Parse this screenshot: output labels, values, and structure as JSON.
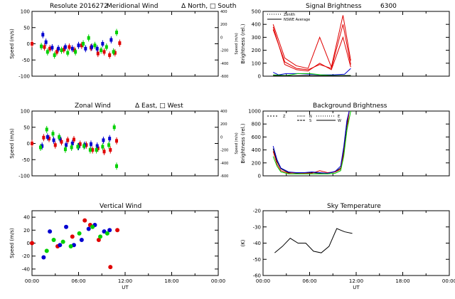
{
  "page_title": "Resolute 2016272",
  "colors": {
    "red": "#e00000",
    "blue": "#0000d0",
    "green": "#00d000",
    "black": "#000000"
  },
  "chart_data": [
    {
      "id": "meridional",
      "type": "scatter",
      "title": "Meridional Wind",
      "legend_text": "Δ North,  □ South",
      "xlabel": "",
      "ylabel": "Speed (m/s)",
      "ylabel_right": "Speed (m/s)",
      "xlim": [
        0,
        24
      ],
      "ylim": [
        -100,
        100
      ],
      "yticks": [
        -100,
        -50,
        0,
        50,
        100
      ],
      "yticks_right": [
        "-600",
        "-400",
        "-200",
        "0",
        "200",
        "400"
      ],
      "xticks": [],
      "series": [
        {
          "name": "red",
          "color": "#e00000",
          "points": [
            [
              0.0,
              0
            ],
            [
              1.6,
              -10
            ],
            [
              2.3,
              -15
            ],
            [
              3.2,
              -25
            ],
            [
              4.1,
              -18
            ],
            [
              4.8,
              -10
            ],
            [
              5.5,
              -20
            ],
            [
              6.4,
              -5
            ],
            [
              7.6,
              -12
            ],
            [
              8.5,
              -30
            ],
            [
              9.3,
              -25
            ],
            [
              10.0,
              -35
            ],
            [
              10.7,
              -28
            ],
            [
              11.3,
              2
            ]
          ]
        },
        {
          "name": "blue",
          "color": "#0000d0",
          "points": [
            [
              1.4,
              28
            ],
            [
              1.8,
              5
            ],
            [
              2.6,
              -12
            ],
            [
              3.4,
              -15
            ],
            [
              4.3,
              -10
            ],
            [
              5.2,
              -15
            ],
            [
              6.0,
              -5
            ],
            [
              6.9,
              -15
            ],
            [
              7.7,
              -10
            ],
            [
              8.4,
              -15
            ],
            [
              9.1,
              0
            ],
            [
              10.2,
              12
            ]
          ]
        },
        {
          "name": "green",
          "color": "#00d000",
          "points": [
            [
              1.2,
              -8
            ],
            [
              2.0,
              -25
            ],
            [
              2.9,
              -35
            ],
            [
              3.8,
              -20
            ],
            [
              4.6,
              -28
            ],
            [
              5.6,
              -25
            ],
            [
              6.6,
              0
            ],
            [
              7.3,
              18
            ],
            [
              8.1,
              -5
            ],
            [
              8.9,
              -20
            ],
            [
              9.6,
              -10
            ],
            [
              10.5,
              -25
            ],
            [
              10.9,
              35
            ]
          ]
        }
      ]
    },
    {
      "id": "signal",
      "type": "line",
      "title": "Signal Brightness",
      "subtitle": "6300",
      "legend": [
        "Zenith",
        "NSWE Average"
      ],
      "xlabel": "",
      "ylabel": "Brightness (rel.)",
      "xlim": [
        0,
        24
      ],
      "ylim": [
        0,
        500
      ],
      "yticks": [
        0,
        100,
        200,
        300,
        400,
        500
      ],
      "xticks": [],
      "series": [
        {
          "name": "red1",
          "color": "#e00000",
          "x": [
            1.3,
            2.8,
            4.3,
            5.8,
            7.3,
            8.8,
            10.3,
            11.3
          ],
          "values": [
            400,
            140,
            80,
            60,
            300,
            70,
            470,
            120
          ]
        },
        {
          "name": "red2",
          "color": "#e00000",
          "x": [
            1.3,
            2.8,
            4.3,
            5.8,
            7.3,
            8.8,
            10.3,
            11.3
          ],
          "values": [
            360,
            110,
            60,
            50,
            90,
            60,
            400,
            90
          ]
        },
        {
          "name": "red3",
          "color": "#e00000",
          "x": [
            1.3,
            2.8,
            4.3,
            5.8,
            7.3,
            8.8,
            10.3,
            11.3
          ],
          "values": [
            380,
            90,
            50,
            40,
            100,
            50,
            300,
            70
          ]
        },
        {
          "name": "blue",
          "color": "#0000d0",
          "x": [
            1.3,
            2.0,
            3.0,
            4.5,
            6.0,
            7.5,
            9.0,
            10.5,
            11.3
          ],
          "values": [
            30,
            10,
            20,
            20,
            15,
            10,
            10,
            15,
            60
          ]
        },
        {
          "name": "green",
          "color": "#00d000",
          "x": [
            1.3,
            3.0,
            4.5,
            6.0,
            7.5,
            9.0,
            10.5,
            11.3
          ],
          "values": [
            10,
            5,
            20,
            20,
            10,
            5,
            5,
            5
          ]
        },
        {
          "name": "black",
          "color": "#000000",
          "x": [
            1.3,
            3.0,
            5.0,
            7.0,
            9.0,
            11.3
          ],
          "values": [
            5,
            3,
            4,
            4,
            3,
            5
          ]
        }
      ]
    },
    {
      "id": "zonal",
      "type": "scatter",
      "title": "Zonal Wind",
      "legend_text": "Δ East,  □ West",
      "xlabel": "",
      "ylabel": "Speed (m/s)",
      "ylabel_right": "Speed (m/s)",
      "xlim": [
        0,
        24
      ],
      "ylim": [
        -100,
        100
      ],
      "yticks": [
        -100,
        -50,
        0,
        50,
        100
      ],
      "yticks_right": [
        "-600",
        "-400",
        "-200",
        "0",
        "200",
        "400"
      ],
      "xticks": [],
      "series": [
        {
          "name": "red",
          "color": "#e00000",
          "points": [
            [
              0.0,
              0
            ],
            [
              1.5,
              18
            ],
            [
              2.2,
              15
            ],
            [
              3.0,
              -5
            ],
            [
              3.8,
              5
            ],
            [
              4.6,
              10
            ],
            [
              5.4,
              12
            ],
            [
              6.2,
              -2
            ],
            [
              7.0,
              -5
            ],
            [
              7.8,
              -20
            ],
            [
              8.5,
              -15
            ],
            [
              9.3,
              -25
            ],
            [
              10.1,
              -20
            ],
            [
              10.9,
              8
            ]
          ]
        },
        {
          "name": "blue",
          "color": "#0000d0",
          "points": [
            [
              1.3,
              -8
            ],
            [
              2.0,
              20
            ],
            [
              2.8,
              10
            ],
            [
              3.6,
              15
            ],
            [
              4.4,
              -5
            ],
            [
              5.2,
              0
            ],
            [
              6.0,
              -10
            ],
            [
              6.8,
              -5
            ],
            [
              7.6,
              -2
            ],
            [
              8.4,
              -8
            ],
            [
              9.2,
              10
            ],
            [
              10.0,
              15
            ]
          ]
        },
        {
          "name": "green",
          "color": "#00d000",
          "points": [
            [
              1.1,
              -12
            ],
            [
              1.9,
              43
            ],
            [
              2.7,
              30
            ],
            [
              3.5,
              20
            ],
            [
              4.3,
              -18
            ],
            [
              5.1,
              -12
            ],
            [
              5.9,
              -10
            ],
            [
              6.7,
              -8
            ],
            [
              7.5,
              -20
            ],
            [
              8.3,
              -20
            ],
            [
              9.1,
              -10
            ],
            [
              9.9,
              -5
            ],
            [
              10.6,
              50
            ],
            [
              10.9,
              -70
            ]
          ]
        }
      ]
    },
    {
      "id": "background",
      "type": "line",
      "title": "Background Brightness",
      "legend": [
        "Z",
        "N",
        "E",
        "S",
        "W"
      ],
      "xlabel": "",
      "ylabel": "Brightness (rel.)",
      "xlim": [
        0,
        24
      ],
      "ylim": [
        0,
        1000
      ],
      "yticks": [
        0,
        200,
        400,
        600,
        800,
        1000
      ],
      "xticks": [],
      "series": [
        {
          "name": "black",
          "color": "#000000",
          "x": [
            1.3,
            1.8,
            2.3,
            3.3,
            4.3,
            5.3,
            6.3,
            7.3,
            8.3,
            9.3,
            10.0,
            10.4,
            10.8,
            11.1
          ],
          "values": [
            420,
            220,
            110,
            50,
            40,
            40,
            50,
            40,
            40,
            60,
            120,
            400,
            800,
            1000
          ]
        },
        {
          "name": "red",
          "color": "#e00000",
          "x": [
            1.3,
            1.8,
            2.3,
            3.3,
            4.3,
            5.3,
            6.3,
            7.3,
            8.3,
            9.3,
            10.0,
            10.4,
            10.8,
            11.1
          ],
          "values": [
            380,
            180,
            80,
            40,
            50,
            40,
            40,
            80,
            50,
            60,
            100,
            350,
            700,
            1000
          ]
        },
        {
          "name": "blue",
          "color": "#0000d0",
          "x": [
            1.3,
            1.8,
            2.3,
            3.3,
            4.3,
            5.3,
            6.3,
            7.3,
            8.3,
            9.3,
            10.0,
            10.4,
            10.8,
            11.1
          ],
          "values": [
            460,
            250,
            120,
            60,
            50,
            50,
            60,
            50,
            40,
            70,
            150,
            450,
            850,
            1000
          ]
        },
        {
          "name": "green",
          "color": "#00d000",
          "x": [
            1.3,
            1.8,
            2.3,
            3.3,
            4.3,
            5.3,
            6.3,
            7.3,
            8.3,
            9.3,
            10.0,
            10.4,
            10.8,
            11.3
          ],
          "values": [
            300,
            150,
            60,
            30,
            30,
            30,
            30,
            30,
            30,
            40,
            80,
            300,
            700,
            1000
          ]
        }
      ]
    },
    {
      "id": "vertical",
      "type": "scatter",
      "title": "Vertical Wind",
      "xlabel": "UT",
      "ylabel": "Speed (m/s)",
      "xlim": [
        0,
        24
      ],
      "ylim": [
        -50,
        50
      ],
      "yticks": [
        -40,
        -20,
        0,
        20,
        40
      ],
      "xticks": [
        "00:00",
        "06:00",
        "12:00",
        "18:00",
        "00:00"
      ],
      "series": [
        {
          "name": "red",
          "color": "#e00000",
          "points": [
            [
              0.0,
              0
            ],
            [
              3.3,
              -5
            ],
            [
              5.2,
              10
            ],
            [
              6.8,
              35
            ],
            [
              8.6,
              5
            ],
            [
              10.1,
              -37
            ],
            [
              11.0,
              20
            ],
            [
              7.5,
              28
            ]
          ]
        },
        {
          "name": "blue",
          "color": "#0000d0",
          "points": [
            [
              1.5,
              -22
            ],
            [
              2.3,
              18
            ],
            [
              3.6,
              -3
            ],
            [
              4.4,
              25
            ],
            [
              5.4,
              -3
            ],
            [
              6.4,
              5
            ],
            [
              7.3,
              22
            ],
            [
              8.1,
              28
            ],
            [
              9.3,
              18
            ],
            [
              10.0,
              20
            ]
          ]
        },
        {
          "name": "green",
          "color": "#00d000",
          "points": [
            [
              1.9,
              -12
            ],
            [
              2.8,
              5
            ],
            [
              4.0,
              2
            ],
            [
              5.0,
              -5
            ],
            [
              6.1,
              15
            ],
            [
              7.8,
              25
            ],
            [
              8.8,
              10
            ],
            [
              9.7,
              15
            ]
          ]
        }
      ]
    },
    {
      "id": "sky",
      "type": "line",
      "title": "Sky Temperature",
      "xlabel": "UT",
      "ylabel": "(K)",
      "xlim": [
        0,
        24
      ],
      "ylim": [
        -60,
        -20
      ],
      "yticks": [
        -60,
        -50,
        -40,
        -30,
        -20
      ],
      "xticks": [
        "00:00",
        "06:00",
        "12:00",
        "18:00",
        "00:00"
      ],
      "series": [
        {
          "name": "black",
          "color": "#000000",
          "x": [
            1.5,
            2.5,
            3.5,
            4.5,
            5.5,
            6.5,
            7.5,
            8.5,
            9.5,
            10.5,
            11.5
          ],
          "values": [
            -46,
            -42,
            -37,
            -40,
            -40,
            -45,
            -46,
            -42,
            -31,
            -33,
            -34
          ]
        }
      ]
    }
  ]
}
